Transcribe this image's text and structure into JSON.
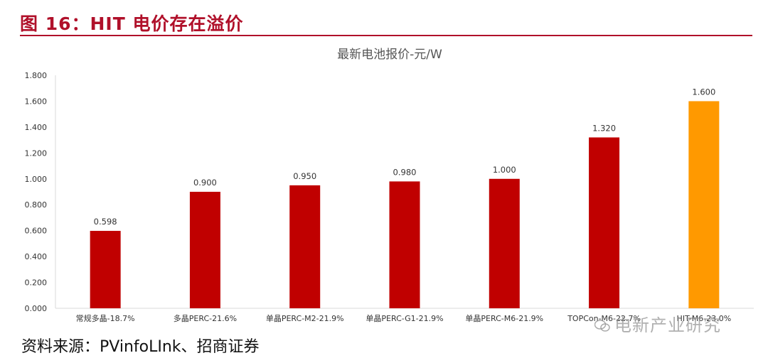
{
  "figure": {
    "caption": "图 16：HIT 电价存在溢价",
    "source": "资料来源：PVinfoLInk、招商证券",
    "watermark": "电新产业研究"
  },
  "colors": {
    "caption": "#b0102a",
    "bar_default": "#c00000",
    "bar_highlight": "#ff9900",
    "grid": "#e6e6e6",
    "axis_text": "#333333"
  },
  "chart_data": {
    "type": "bar",
    "title": "最新电池报价-元/W",
    "xlabel": "",
    "ylabel": "",
    "categories": [
      "常规多晶-18.7%",
      "多晶PERC-21.6%",
      "单晶PERC-M2-21.9%",
      "单晶PERC-G1-21.9%",
      "单晶PERC-M6-21.9%",
      "TOPCon-M6-22.7%",
      "HIT-M6-23.0%"
    ],
    "values": [
      0.598,
      0.9,
      0.95,
      0.98,
      1.0,
      1.32,
      1.6
    ],
    "value_labels": [
      "0.598",
      "0.900",
      "0.950",
      "0.980",
      "1.000",
      "1.320",
      "1.600"
    ],
    "highlight_index": 6,
    "ylim": [
      0,
      1.8
    ],
    "yticks": [
      "0.000",
      "0.200",
      "0.400",
      "0.600",
      "0.800",
      "1.000",
      "1.200",
      "1.400",
      "1.600",
      "1.800"
    ],
    "grid": false,
    "legend": "none"
  }
}
